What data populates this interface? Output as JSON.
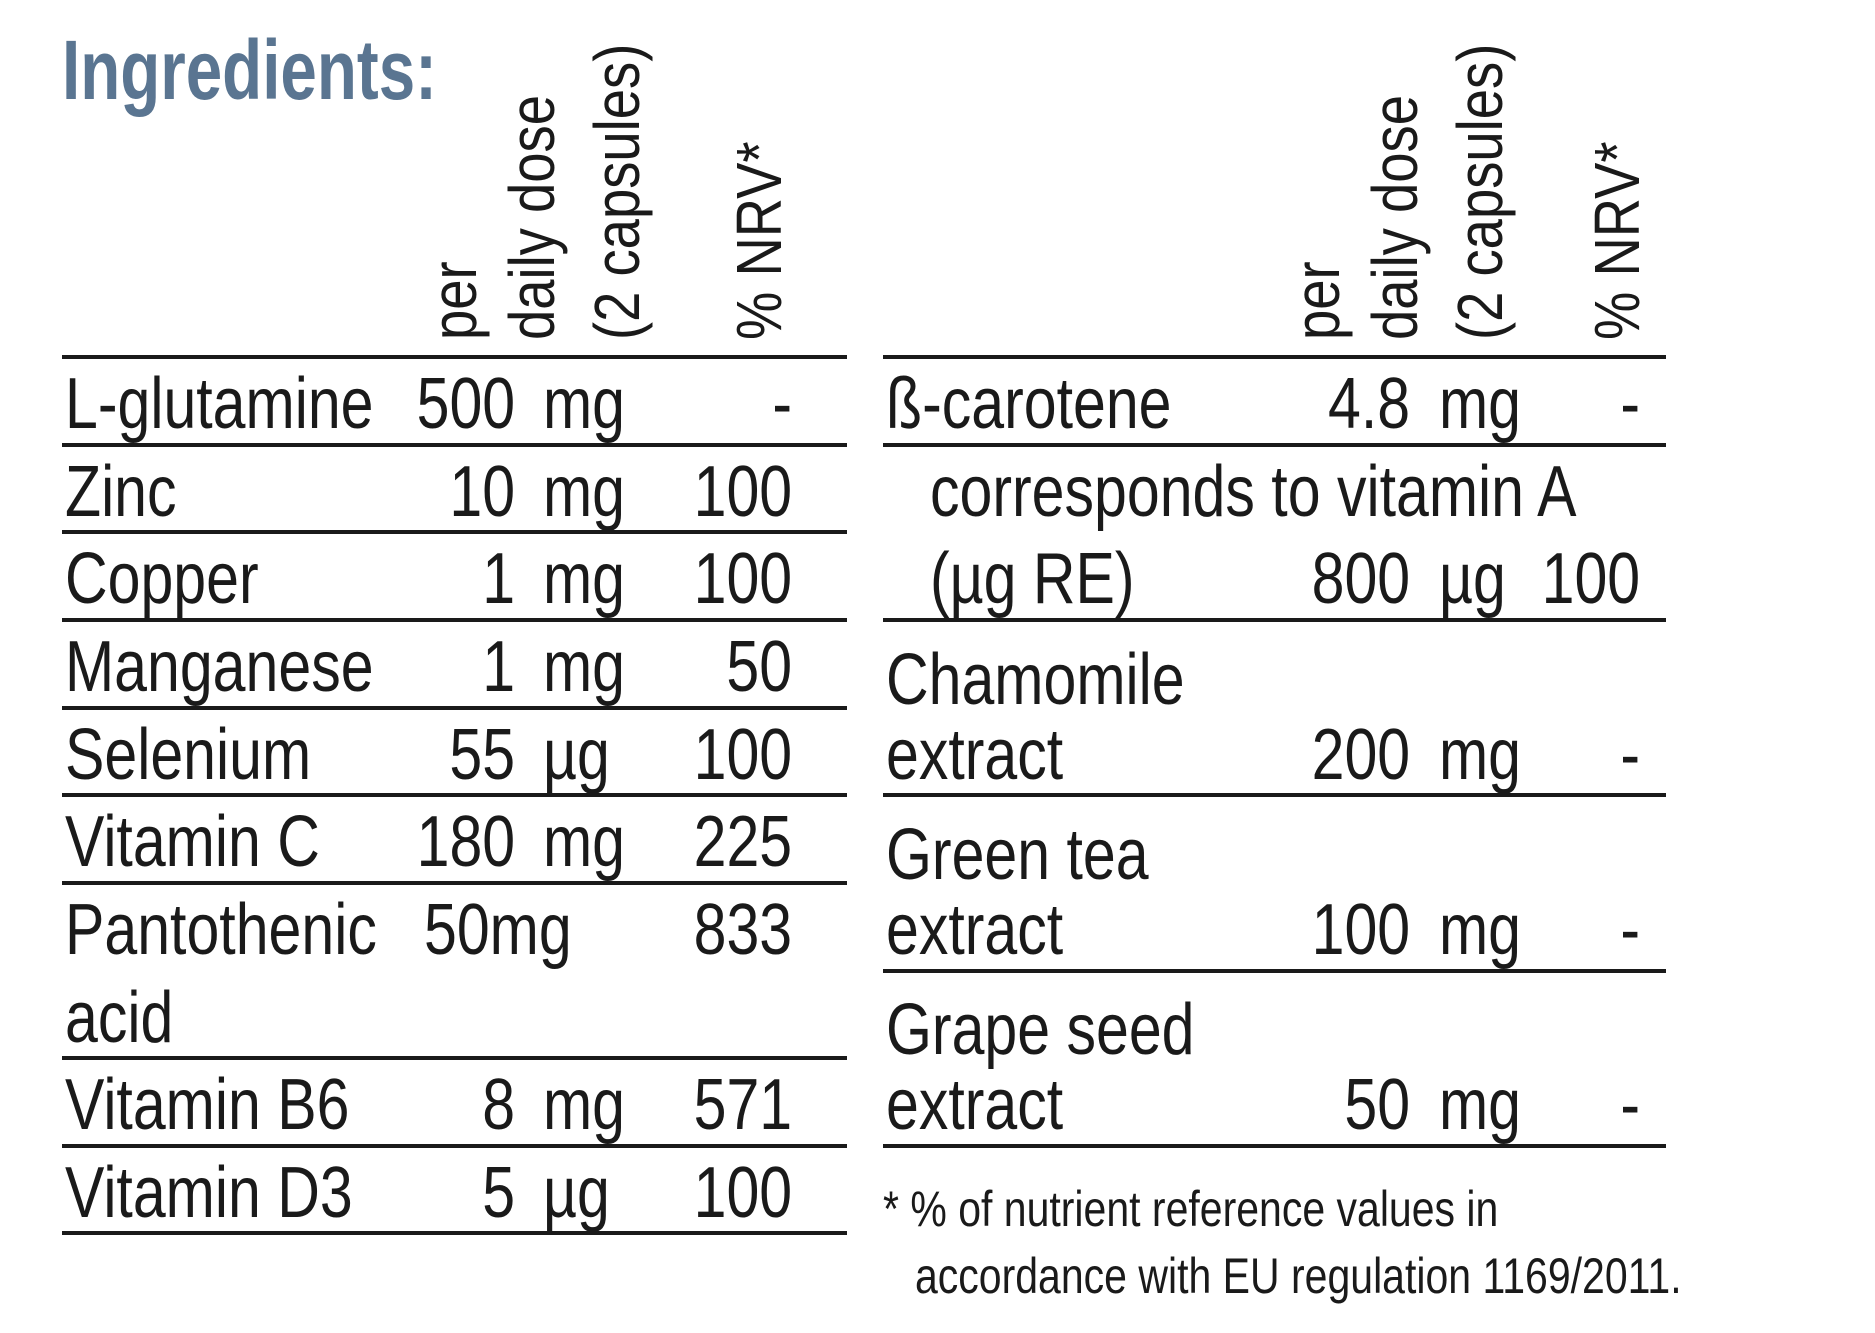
{
  "title": "Ingredients:",
  "column_headers": {
    "per": "per",
    "daily_dose": "daily dose",
    "capsules": "(2 capsules)",
    "nrv": "% NRV*"
  },
  "left_table": [
    {
      "name": "L-glutamine",
      "amount": "500",
      "unit": "mg",
      "nrv": "-"
    },
    {
      "name": "Zinc",
      "amount": "10",
      "unit": "mg",
      "nrv": "100"
    },
    {
      "name": "Copper",
      "amount": "1",
      "unit": "mg",
      "nrv": "100"
    },
    {
      "name": "Manganese",
      "amount": "1",
      "unit": "mg",
      "nrv": "50"
    },
    {
      "name": "Selenium",
      "amount": "55",
      "unit": "µg",
      "nrv": "100"
    },
    {
      "name": "Vitamin C",
      "amount": "180",
      "unit": "mg",
      "nrv": "225"
    },
    {
      "name": "Pantothenic",
      "name2": "acid",
      "amount_unit": "50mg",
      "nrv": "833"
    },
    {
      "name": "Vitamin B6",
      "amount": "8",
      "unit": "mg",
      "nrv": "571"
    },
    {
      "name": "Vitamin D3",
      "amount": "5",
      "unit": "µg",
      "nrv": "100"
    }
  ],
  "right_table": [
    {
      "name": "ß-carotene",
      "amount": "4.8",
      "unit": "mg",
      "nrv": "-"
    },
    {
      "name": "corresponds to vitamin A",
      "name2": "(µg RE)",
      "amount": "800",
      "unit": "µg",
      "nrv": "100"
    },
    {
      "name": "Chamomile",
      "name2": "extract",
      "amount": "200",
      "unit": "mg",
      "nrv": "-"
    },
    {
      "name": "Green tea",
      "name2": "extract",
      "amount": "100",
      "unit": "mg",
      "nrv": "-"
    },
    {
      "name": "Grape seed",
      "name2": "extract",
      "amount": "50",
      "unit": "mg",
      "nrv": "-"
    }
  ],
  "footnote": {
    "line1": "* % of nutrient reference values in",
    "line2": "accordance with EU regulation 1169/2011."
  }
}
